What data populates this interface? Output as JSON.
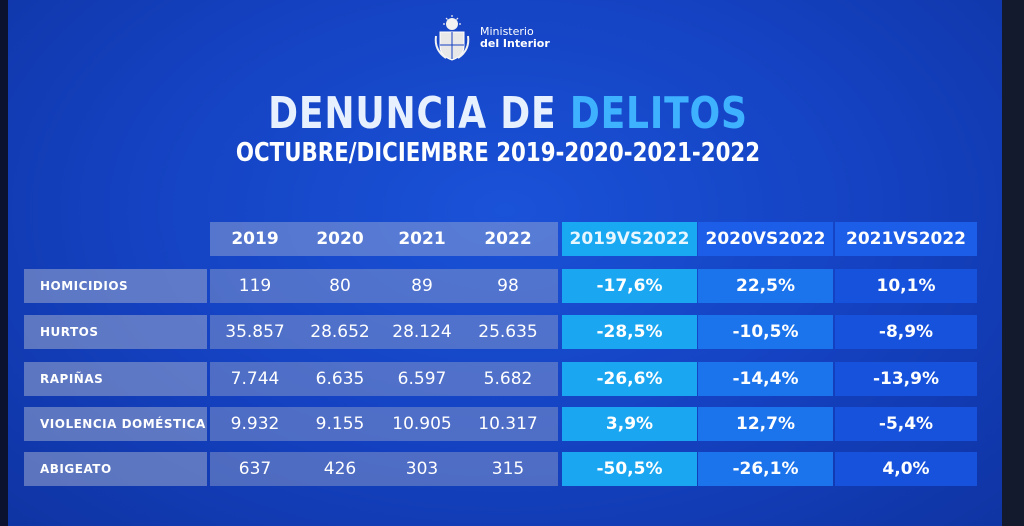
{
  "header": {
    "ministry_line1": "Ministerio",
    "ministry_line2": "del Interior",
    "title_part1": "DENUNCIA DE",
    "title_part2": "DELITOS",
    "subtitle": "OCTUBRE/DICIEMBRE 2019-2020-2021-2022"
  },
  "table": {
    "year_headers": [
      "2019",
      "2020",
      "2021",
      "2022"
    ],
    "comparison_headers": [
      "2019VS2022",
      "2020VS2022",
      "2021VS2022"
    ],
    "rows": [
      {
        "label": "HOMICIDIOS",
        "values": [
          "119",
          "80",
          "89",
          "98"
        ],
        "changes": [
          "-17,6%",
          "22,5%",
          "10,1%"
        ]
      },
      {
        "label": "HURTOS",
        "values": [
          "35.857",
          "28.652",
          "28.124",
          "25.635"
        ],
        "changes": [
          "-28,5%",
          "-10,5%",
          "-8,9%"
        ]
      },
      {
        "label": "RAPIÑAS",
        "values": [
          "7.744",
          "6.635",
          "6.597",
          "5.682"
        ],
        "changes": [
          "-26,6%",
          "-14,4%",
          "-13,9%"
        ]
      },
      {
        "label": "VIOLENCIA DOMÉSTICA",
        "values": [
          "9.932",
          "9.155",
          "10.905",
          "10.317"
        ],
        "changes": [
          "3,9%",
          "12,7%",
          "-5,4%"
        ]
      },
      {
        "label": "ABIGEATO",
        "values": [
          "637",
          "426",
          "303",
          "315"
        ],
        "changes": [
          "-50,5%",
          "-26,1%",
          "4,0%"
        ]
      }
    ]
  },
  "colors": {
    "background": "#1441c0",
    "accent": "#3fb2ff",
    "comparison_cyan": "#1aa6f0",
    "comparison_blue": "#1b74ec"
  }
}
